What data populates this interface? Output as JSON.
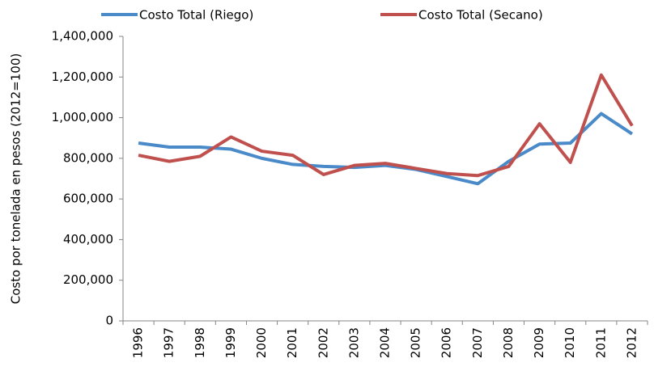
{
  "chart_data": {
    "type": "line",
    "y_label": "Costo por tonelada en pesos (2012=100)",
    "categories": [
      "1996",
      "1997",
      "1998",
      "1999",
      "2000",
      "2001",
      "2002",
      "2003",
      "2004",
      "2005",
      "2006",
      "2007",
      "2008",
      "2009",
      "2010",
      "2011",
      "2012"
    ],
    "series": [
      {
        "name": "Costo Total (Riego)",
        "color": "#4a8ac9",
        "values": [
          875000,
          855000,
          855000,
          845000,
          800000,
          770000,
          760000,
          755000,
          765000,
          745000,
          710000,
          675000,
          785000,
          870000,
          875000,
          1020000,
          920000
        ]
      },
      {
        "name": "Costo Total (Secano)",
        "color": "#c0504d",
        "values": [
          815000,
          785000,
          810000,
          905000,
          835000,
          815000,
          720000,
          765000,
          775000,
          750000,
          725000,
          715000,
          760000,
          970000,
          780000,
          1210000,
          960000
        ]
      }
    ],
    "ylim": [
      0,
      1400000
    ],
    "yticks": [
      {
        "value": 0,
        "label": "0"
      },
      {
        "value": 200000,
        "label": "200,000"
      },
      {
        "value": 400000,
        "label": "400,000"
      },
      {
        "value": 600000,
        "label": "600,000"
      },
      {
        "value": 800000,
        "label": "800,000"
      },
      {
        "value": 1000000,
        "label": "1,000,000"
      },
      {
        "value": 1200000,
        "label": "1,200,000"
      },
      {
        "value": 1400000,
        "label": "1,400,000"
      }
    ],
    "legend": "top"
  }
}
